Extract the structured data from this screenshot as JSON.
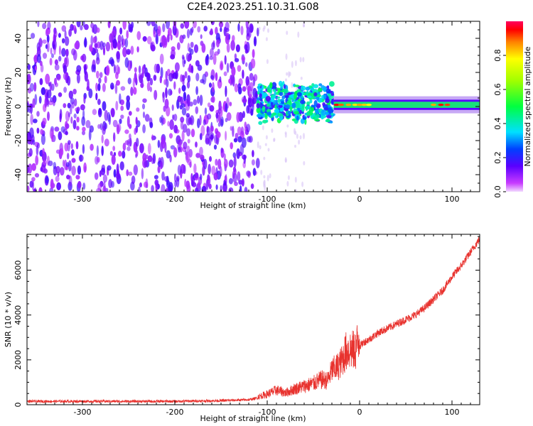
{
  "title": "C2E4.2023.251.10.31.G08",
  "colors": {
    "snr_line": "#e8322e",
    "spec_weak": "#8a2be2",
    "spec_faint": "#d9c4f7"
  },
  "chart_data": [
    {
      "type": "heatmap",
      "name": "spectrogram",
      "xlabel": "Height of straight line (km)",
      "ylabel": "Frequency (Hz)",
      "xlim": [
        -360,
        130
      ],
      "ylim": [
        -50,
        50
      ],
      "x_ticks": [
        -300,
        -200,
        -100,
        0,
        100
      ],
      "y_ticks": [
        -40,
        -20,
        0,
        20,
        40
      ],
      "colorbar": {
        "label": "Normalized spectral amplitude",
        "range": [
          0,
          1
        ],
        "ticks": [
          0.0,
          0.2,
          0.4,
          0.6,
          0.8
        ],
        "colormap": "hsv-like (magenta, blue, cyan, green, yellow, red)"
      },
      "description_regions": [
        {
          "x_range": [
            -360,
            -110
          ],
          "freq_range": [
            -50,
            50
          ],
          "amplitude": 0.05,
          "note": "noise"
        },
        {
          "x_range": [
            -110,
            -28
          ],
          "freq_center": 2,
          "freq_spread": 12,
          "amplitude": 0.3
        },
        {
          "x_range": [
            -28,
            130
          ],
          "freq_center": 1,
          "freq_spread": 3,
          "amplitude": 0.4
        }
      ],
      "grid": false
    },
    {
      "type": "line",
      "name": "snr",
      "xlabel": "Height of straight line (km)",
      "ylabel": "SNR (10 * v/v)",
      "xlim": [
        -360,
        130
      ],
      "ylim": [
        0,
        7600
      ],
      "x_ticks": [
        -300,
        -200,
        -100,
        0,
        100
      ],
      "y_ticks": [
        0,
        2000,
        4000,
        6000
      ],
      "series": [
        {
          "x": [
            -360,
            -300,
            -250,
            -200,
            -150,
            -120,
            -110,
            -100,
            -90,
            -80,
            -70,
            -60,
            -50,
            -45,
            -40,
            -35,
            -30,
            -25,
            -20,
            -15,
            -10,
            -5,
            0,
            5,
            10,
            20,
            30,
            40,
            50,
            60,
            70,
            80,
            90,
            100,
            110,
            120,
            130
          ],
          "y": [
            150,
            150,
            150,
            150,
            180,
            220,
            300,
            400,
            550,
            450,
            600,
            700,
            800,
            900,
            950,
            900,
            1300,
            1400,
            1600,
            2000,
            2100,
            2000,
            2600,
            2800,
            2900,
            3200,
            3400,
            3600,
            3800,
            4000,
            4300,
            4700,
            5100,
            5700,
            6200,
            6800,
            7400
          ]
        }
      ],
      "grid": false
    }
  ]
}
